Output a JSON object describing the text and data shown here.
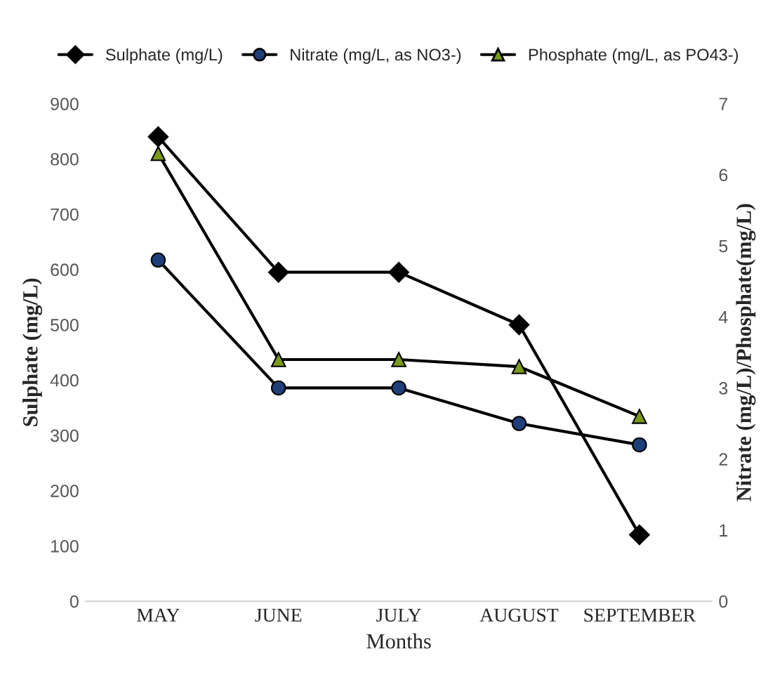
{
  "chart_data": {
    "type": "line",
    "xlabel": "Months",
    "ylabel": "Sulphate (mg/L)",
    "y2label": "Nitrate (mg/L)/Phosphate(mg/L)",
    "categories": [
      "MAY",
      "JUNE",
      "JULY",
      "AUGUST",
      "SEPTEMBER"
    ],
    "series": [
      {
        "name": "Sulphate (mg/L)",
        "color": "#000000",
        "marker": "diamond",
        "values": [
          840,
          595,
          595,
          500,
          120
        ]
      },
      {
        "name": "Nitrate (mg/L, as NO3-)",
        "color": "#1f3f7a",
        "marker": "circle",
        "axis": "y2",
        "values": [
          4.8,
          3.0,
          3.0,
          2.5,
          2.2
        ]
      },
      {
        "name": "Phosphate (mg/L, as PO43-)",
        "color": "#7a9a1a",
        "marker": "triangle",
        "axis": "y2",
        "values": [
          6.3,
          3.4,
          3.4,
          3.3,
          2.6
        ]
      }
    ],
    "ylim": [
      0,
      900
    ],
    "yticks": [
      0,
      100,
      200,
      300,
      400,
      500,
      600,
      700,
      800,
      900
    ],
    "y2lim": [
      0,
      7
    ],
    "y2ticks": [
      0,
      1,
      2,
      3,
      4,
      5,
      6,
      7
    ],
    "grid": false,
    "legend": "top",
    "line_style": "solid"
  }
}
